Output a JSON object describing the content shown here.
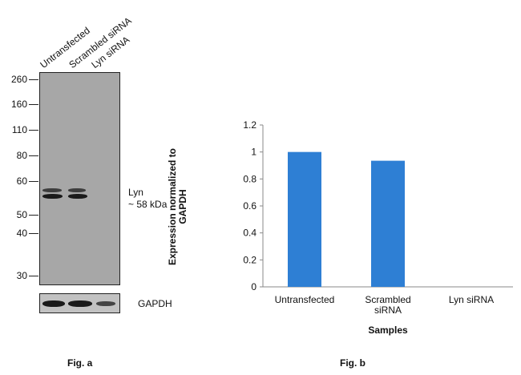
{
  "fig_a": {
    "lane_labels": [
      "Untransfected",
      "Scrambled siRNA",
      "Lyn siRNA"
    ],
    "mw_markers": [
      "260",
      "160",
      "110",
      "80",
      "60",
      "50",
      "40",
      "30"
    ],
    "band_label": "Lyn",
    "band_size": "~ 58 kDa",
    "loading_control": "GAPDH",
    "caption": "Fig. a"
  },
  "fig_b": {
    "caption": "Fig. b"
  },
  "colors": {
    "bar": "#2e7fd4",
    "blot": "#a7a7a7",
    "gapdh_strip": "#c2c2c2"
  },
  "chart_data": {
    "type": "bar",
    "categories": [
      "Untransfected",
      "Scrambled siRNA",
      "Lyn siRNA"
    ],
    "values": [
      1.0,
      0.935,
      0.0
    ],
    "title": "",
    "xlabel": "Samples",
    "ylabel": "Expression normalized to GAPDH",
    "ylim": [
      0,
      1.2
    ],
    "yticks": [
      "0",
      "0.2",
      "0.4",
      "0.6",
      "0.8",
      "1",
      "1.2"
    ],
    "grid": false,
    "legend": "none"
  }
}
